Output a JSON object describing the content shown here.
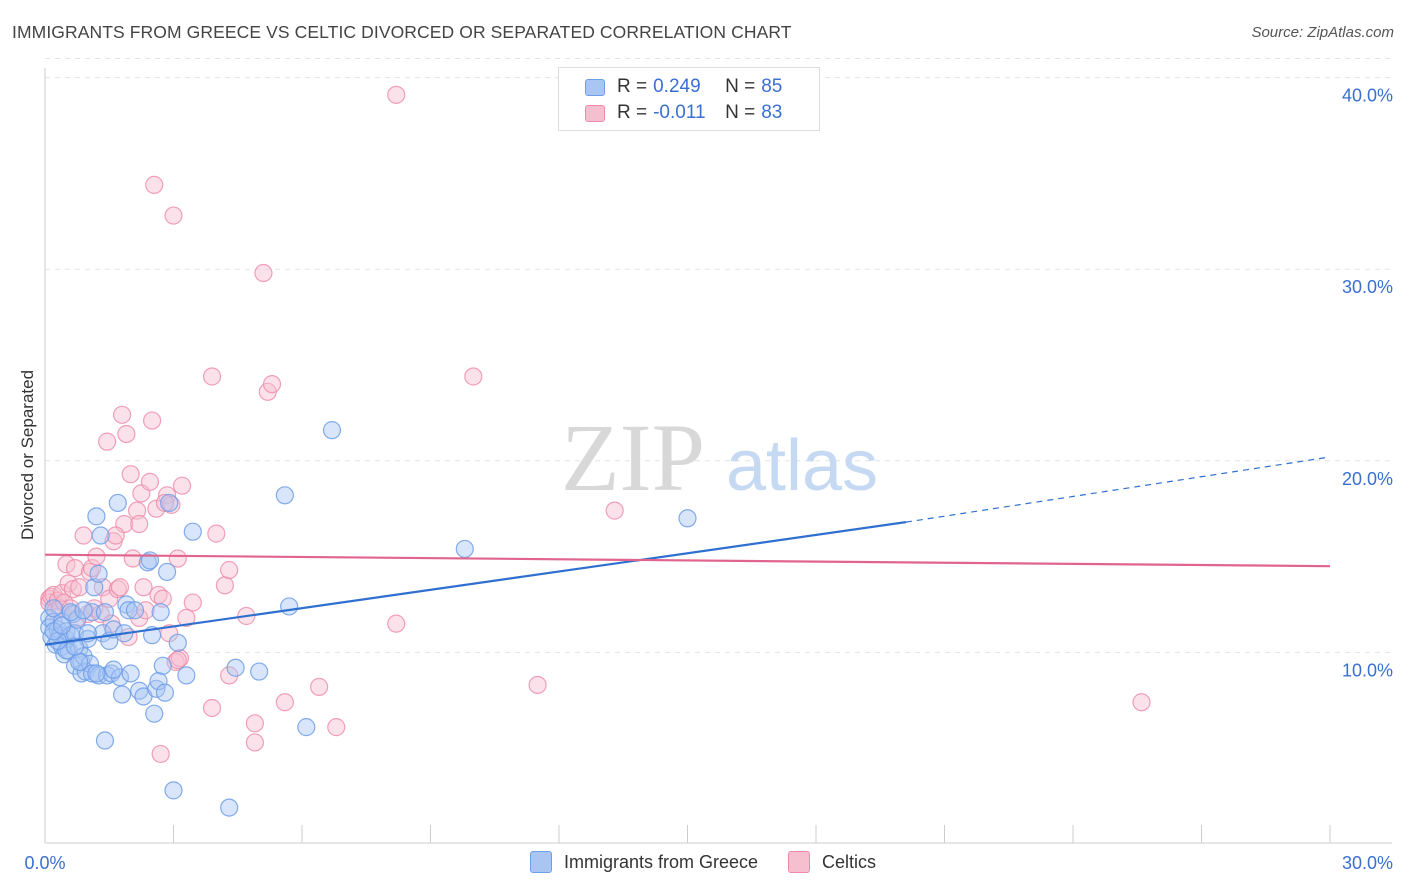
{
  "header": {
    "title": "IMMIGRANTS FROM GREECE VS CELTIC DIVORCED OR SEPARATED CORRELATION CHART",
    "source": "Source: ZipAtlas.com"
  },
  "colors": {
    "blue": "#6f9ee8",
    "blue_fill": "#a9c6f3",
    "blue_line": "#2f6fd0",
    "pink": "#ee8aa8",
    "pink_fill": "#f6bfd0",
    "pink_line": "#e0648e",
    "axis_text": "#3a6fd2"
  },
  "legend": {
    "rows": [
      {
        "r_label": "R =",
        "r_value": "0.249",
        "n_label": "N =",
        "n_value": "85"
      },
      {
        "r_label": "R =",
        "r_value": "-0.011",
        "n_label": "N =",
        "n_value": "83"
      }
    ]
  },
  "watermark": {
    "zip": "ZIP",
    "atlas": "atlas"
  },
  "chart_data": {
    "type": "scatter",
    "title": "IMMIGRANTS FROM GREECE VS CELTIC DIVORCED OR SEPARATED CORRELATION CHART",
    "xlabel": "",
    "ylabel": "Divorced or Separated",
    "xlim": [
      0,
      30
    ],
    "ylim": [
      0,
      41
    ],
    "x_tick_labels": [
      "0.0%",
      "30.0%"
    ],
    "y_tick_labels": [
      "10.0%",
      "20.0%",
      "30.0%",
      "40.0%"
    ],
    "y_ticks": [
      10,
      20,
      30,
      40
    ],
    "grid": "horizontal dashed",
    "legend_placement": "bottom-center",
    "series": [
      {
        "name": "Immigrants from Greece",
        "color": "#6f9ee8",
        "trend": {
          "x0": 0,
          "y0": 10.4,
          "x1": 20.1,
          "y1": 16.8,
          "dashed_to_x": 30,
          "dashed_to_y": 20.2
        },
        "points": [
          [
            0.1,
            11.8
          ],
          [
            0.1,
            11.3
          ],
          [
            0.15,
            10.8
          ],
          [
            0.2,
            11.6
          ],
          [
            0.2,
            12.3
          ],
          [
            0.25,
            10.4
          ],
          [
            0.3,
            11.2
          ],
          [
            0.35,
            10.9
          ],
          [
            0.4,
            10.3
          ],
          [
            0.4,
            11.6
          ],
          [
            0.45,
            9.9
          ],
          [
            0.5,
            10.7
          ],
          [
            0.5,
            11.1
          ],
          [
            0.55,
            10.1
          ],
          [
            0.6,
            10.9
          ],
          [
            0.65,
            12.0
          ],
          [
            0.7,
            9.3
          ],
          [
            0.7,
            11.0
          ],
          [
            0.75,
            11.7
          ],
          [
            0.8,
            10.2
          ],
          [
            0.85,
            8.9
          ],
          [
            0.85,
            9.5
          ],
          [
            0.9,
            9.8
          ],
          [
            0.95,
            9.0
          ],
          [
            1.0,
            10.7
          ],
          [
            1.05,
            9.4
          ],
          [
            1.1,
            8.9
          ],
          [
            1.1,
            12.1
          ],
          [
            1.15,
            13.4
          ],
          [
            1.2,
            17.1
          ],
          [
            1.25,
            8.8
          ],
          [
            1.25,
            14.1
          ],
          [
            1.3,
            16.1
          ],
          [
            1.35,
            11.0
          ],
          [
            1.4,
            12.1
          ],
          [
            1.45,
            8.8
          ],
          [
            1.5,
            10.6
          ],
          [
            1.55,
            8.9
          ],
          [
            1.6,
            11.2
          ],
          [
            1.7,
            17.8
          ],
          [
            1.75,
            8.7
          ],
          [
            1.8,
            7.8
          ],
          [
            1.85,
            11.0
          ],
          [
            1.9,
            12.5
          ],
          [
            1.95,
            12.2
          ],
          [
            2.0,
            8.9
          ],
          [
            2.1,
            12.2
          ],
          [
            2.2,
            8.0
          ],
          [
            2.3,
            7.7
          ],
          [
            2.4,
            14.7
          ],
          [
            2.45,
            14.8
          ],
          [
            2.5,
            10.9
          ],
          [
            2.55,
            6.8
          ],
          [
            2.6,
            8.1
          ],
          [
            2.65,
            8.5
          ],
          [
            2.7,
            12.1
          ],
          [
            2.75,
            9.3
          ],
          [
            2.8,
            7.9
          ],
          [
            2.85,
            14.2
          ],
          [
            2.9,
            17.8
          ],
          [
            3.0,
            2.8
          ],
          [
            3.1,
            10.5
          ],
          [
            3.3,
            8.8
          ],
          [
            3.45,
            16.3
          ],
          [
            4.3,
            1.9
          ],
          [
            4.45,
            9.2
          ],
          [
            5.0,
            9.0
          ],
          [
            5.6,
            18.2
          ],
          [
            5.7,
            12.4
          ],
          [
            6.1,
            6.1
          ],
          [
            6.7,
            21.6
          ],
          [
            9.8,
            15.4
          ],
          [
            15.0,
            17.0
          ],
          [
            1.4,
            5.4
          ],
          [
            0.5,
            10.1
          ],
          [
            0.8,
            9.5
          ],
          [
            1.0,
            11.0
          ],
          [
            0.3,
            10.6
          ],
          [
            0.6,
            12.1
          ],
          [
            0.2,
            11.1
          ],
          [
            0.9,
            12.2
          ],
          [
            1.2,
            8.9
          ],
          [
            0.4,
            11.4
          ],
          [
            0.7,
            10.3
          ],
          [
            1.6,
            9.1
          ]
        ]
      },
      {
        "name": "Celtics",
        "color": "#ee8aa8",
        "trend": {
          "x0": 0,
          "y0": 15.1,
          "x1": 30,
          "y1": 14.5
        },
        "points": [
          [
            0.1,
            12.8
          ],
          [
            0.1,
            12.6
          ],
          [
            0.15,
            12.9
          ],
          [
            0.2,
            13.0
          ],
          [
            0.25,
            12.2
          ],
          [
            0.3,
            12.7
          ],
          [
            0.35,
            12.3
          ],
          [
            0.4,
            13.1
          ],
          [
            0.45,
            12.6
          ],
          [
            0.5,
            14.6
          ],
          [
            0.55,
            13.6
          ],
          [
            0.6,
            12.3
          ],
          [
            0.65,
            13.3
          ],
          [
            0.7,
            14.4
          ],
          [
            0.75,
            11.8
          ],
          [
            0.8,
            13.4
          ],
          [
            0.9,
            16.1
          ],
          [
            1.0,
            12.0
          ],
          [
            1.05,
            14.2
          ],
          [
            1.1,
            14.4
          ],
          [
            1.15,
            12.3
          ],
          [
            1.2,
            15.0
          ],
          [
            1.3,
            12.0
          ],
          [
            1.35,
            13.4
          ],
          [
            1.45,
            21.0
          ],
          [
            1.5,
            12.8
          ],
          [
            1.55,
            11.5
          ],
          [
            1.6,
            15.8
          ],
          [
            1.7,
            13.3
          ],
          [
            1.75,
            13.4
          ],
          [
            1.8,
            22.4
          ],
          [
            1.85,
            16.7
          ],
          [
            1.9,
            21.4
          ],
          [
            1.95,
            10.8
          ],
          [
            2.0,
            19.3
          ],
          [
            2.05,
            14.9
          ],
          [
            2.15,
            17.4
          ],
          [
            2.2,
            11.8
          ],
          [
            2.25,
            18.3
          ],
          [
            2.3,
            13.4
          ],
          [
            2.35,
            12.2
          ],
          [
            2.45,
            18.9
          ],
          [
            2.5,
            22.1
          ],
          [
            2.55,
            34.4
          ],
          [
            2.6,
            17.5
          ],
          [
            2.65,
            13.0
          ],
          [
            2.7,
            4.7
          ],
          [
            2.75,
            12.8
          ],
          [
            2.85,
            18.2
          ],
          [
            2.9,
            11.0
          ],
          [
            2.95,
            17.7
          ],
          [
            3.0,
            32.8
          ],
          [
            3.05,
            9.5
          ],
          [
            3.1,
            14.9
          ],
          [
            3.15,
            9.7
          ],
          [
            3.2,
            18.7
          ],
          [
            3.3,
            11.8
          ],
          [
            3.45,
            12.6
          ],
          [
            3.9,
            7.1
          ],
          [
            3.9,
            24.4
          ],
          [
            4.0,
            16.2
          ],
          [
            4.2,
            13.5
          ],
          [
            4.3,
            8.8
          ],
          [
            4.3,
            14.3
          ],
          [
            4.7,
            11.9
          ],
          [
            4.9,
            6.3
          ],
          [
            4.9,
            5.3
          ],
          [
            5.1,
            29.8
          ],
          [
            5.2,
            23.6
          ],
          [
            5.3,
            24.0
          ],
          [
            5.6,
            7.4
          ],
          [
            6.4,
            8.2
          ],
          [
            6.8,
            6.1
          ],
          [
            8.2,
            39.1
          ],
          [
            8.2,
            11.5
          ],
          [
            10.0,
            24.4
          ],
          [
            11.5,
            8.3
          ],
          [
            13.3,
            17.4
          ],
          [
            25.6,
            7.4
          ],
          [
            2.2,
            16.7
          ],
          [
            1.65,
            16.1
          ],
          [
            2.8,
            17.8
          ],
          [
            3.1,
            9.6
          ]
        ]
      }
    ]
  },
  "bottom_legend": {
    "items": [
      "Immigrants from Greece",
      "Celtics"
    ]
  }
}
